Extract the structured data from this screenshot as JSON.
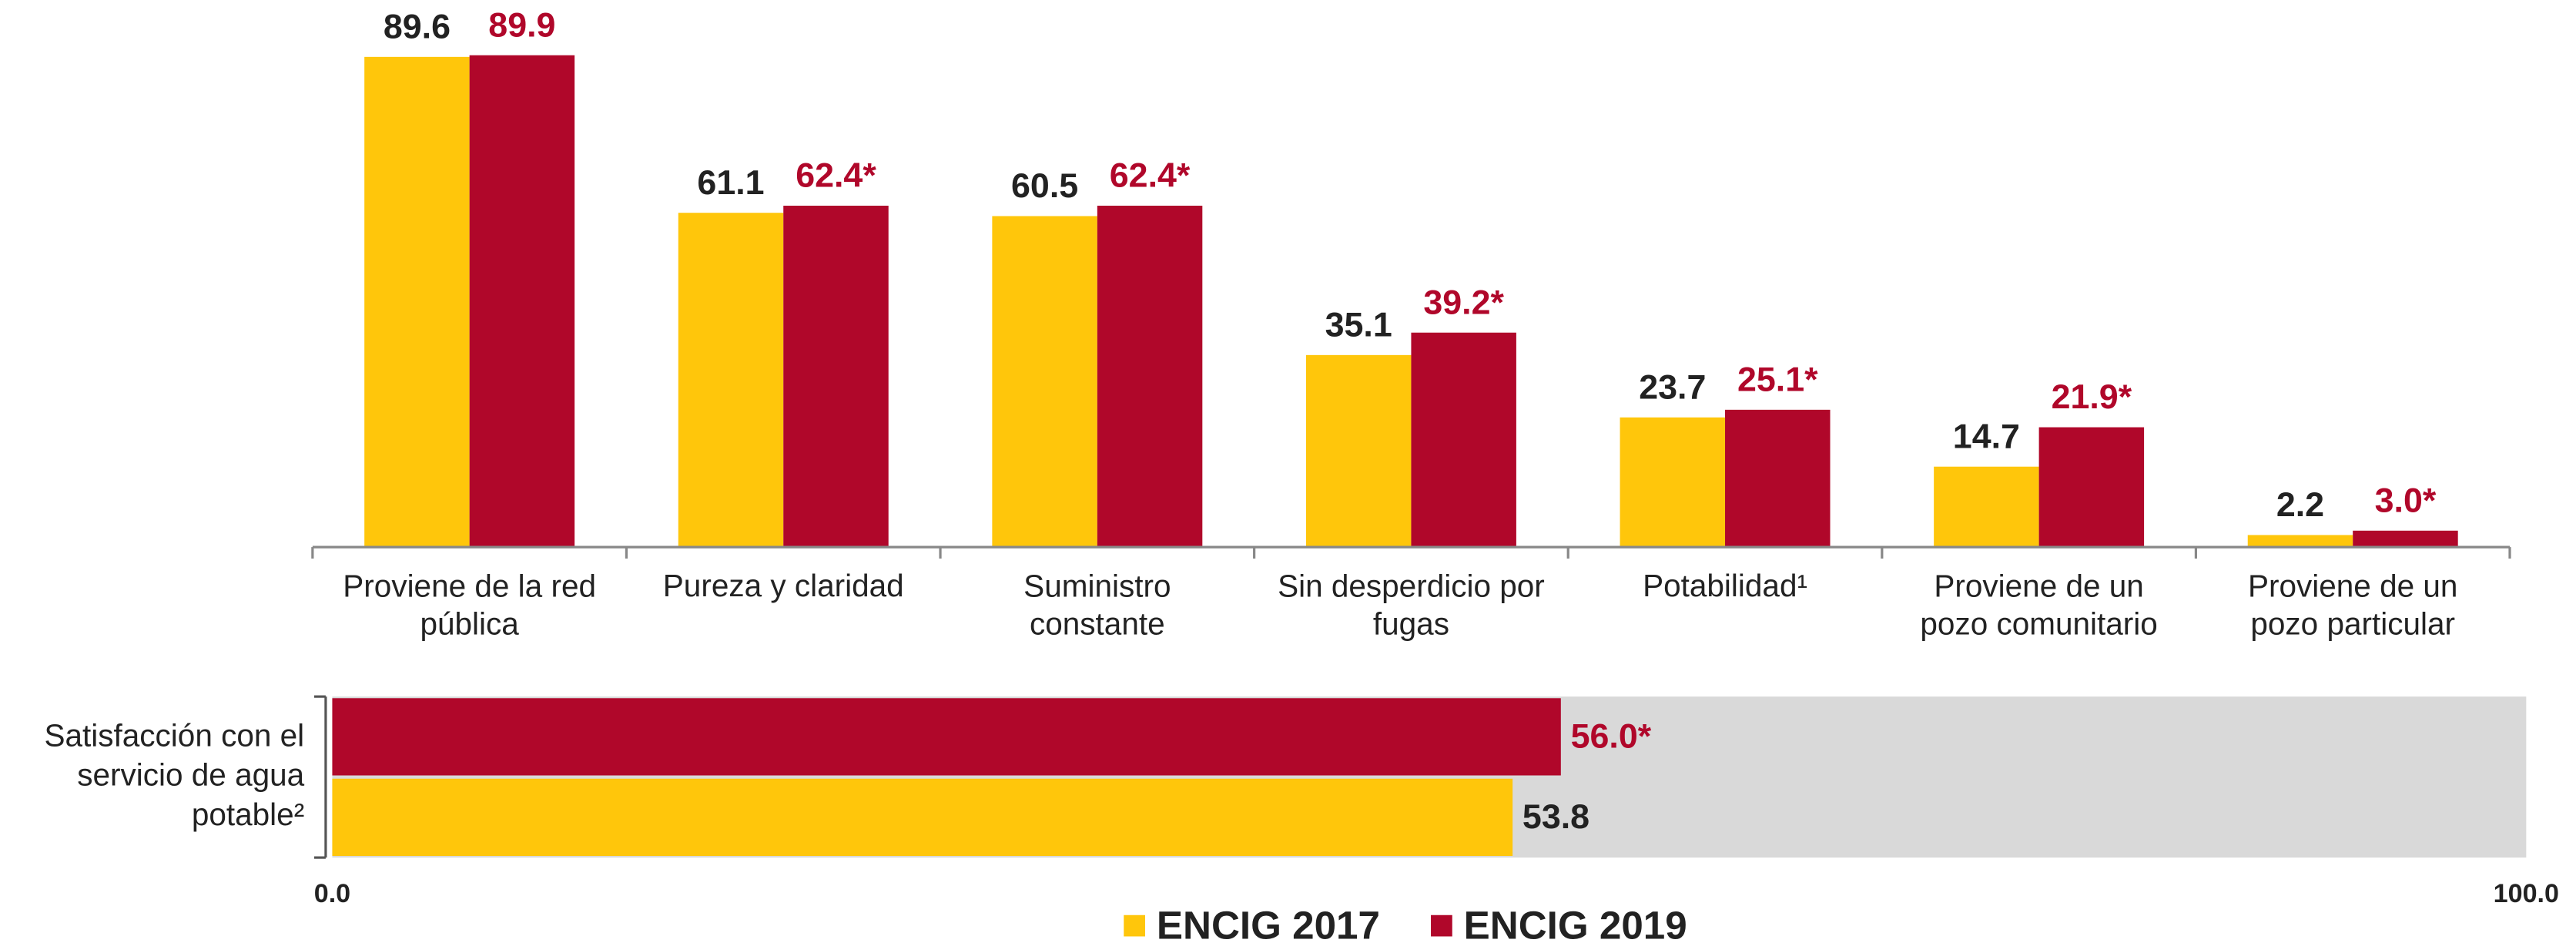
{
  "chart_data": [
    {
      "type": "bar",
      "categories": [
        "Proviene de la red\npública",
        "Pureza y claridad",
        "Suministro\nconstante",
        "Sin desperdicio por\nfugas",
        "Potabilidad¹",
        "Proviene de un\npozo comunitario",
        "Proviene de un\npozo particular"
      ],
      "series": [
        {
          "name": "ENCIG 2017",
          "color": "#ffc60b",
          "label_color": "#222222",
          "values": [
            89.6,
            61.1,
            60.5,
            35.1,
            23.7,
            14.7,
            2.2
          ]
        },
        {
          "name": "ENCIG 2019",
          "color": "#b0072a",
          "label_color": "#b0072a",
          "values": [
            89.9,
            62.4,
            62.4,
            39.2,
            25.1,
            21.9,
            3.0
          ],
          "value_labels": [
            "89.9",
            "62.4*",
            "62.4*",
            "39.2*",
            "25.1*",
            "21.9*",
            "3.0*"
          ]
        }
      ],
      "ylim": [
        0,
        100
      ]
    },
    {
      "type": "hbar",
      "categories": [
        "Satisfacción con el\nservicio de agua\npotable²"
      ],
      "series": [
        {
          "color": "#b0072a",
          "label_color": "#b0072a",
          "values": [
            56.0
          ],
          "value_labels": [
            "56.0*"
          ]
        },
        {
          "color": "#ffc60b",
          "label_color": "#222222",
          "values": [
            53.8
          ]
        }
      ],
      "xlim": [
        0,
        100
      ],
      "xticks": [
        {
          "value": 0,
          "label": "0.0"
        },
        {
          "value": 100,
          "label": "100.0"
        }
      ],
      "background": "#d9d9d9"
    }
  ]
}
